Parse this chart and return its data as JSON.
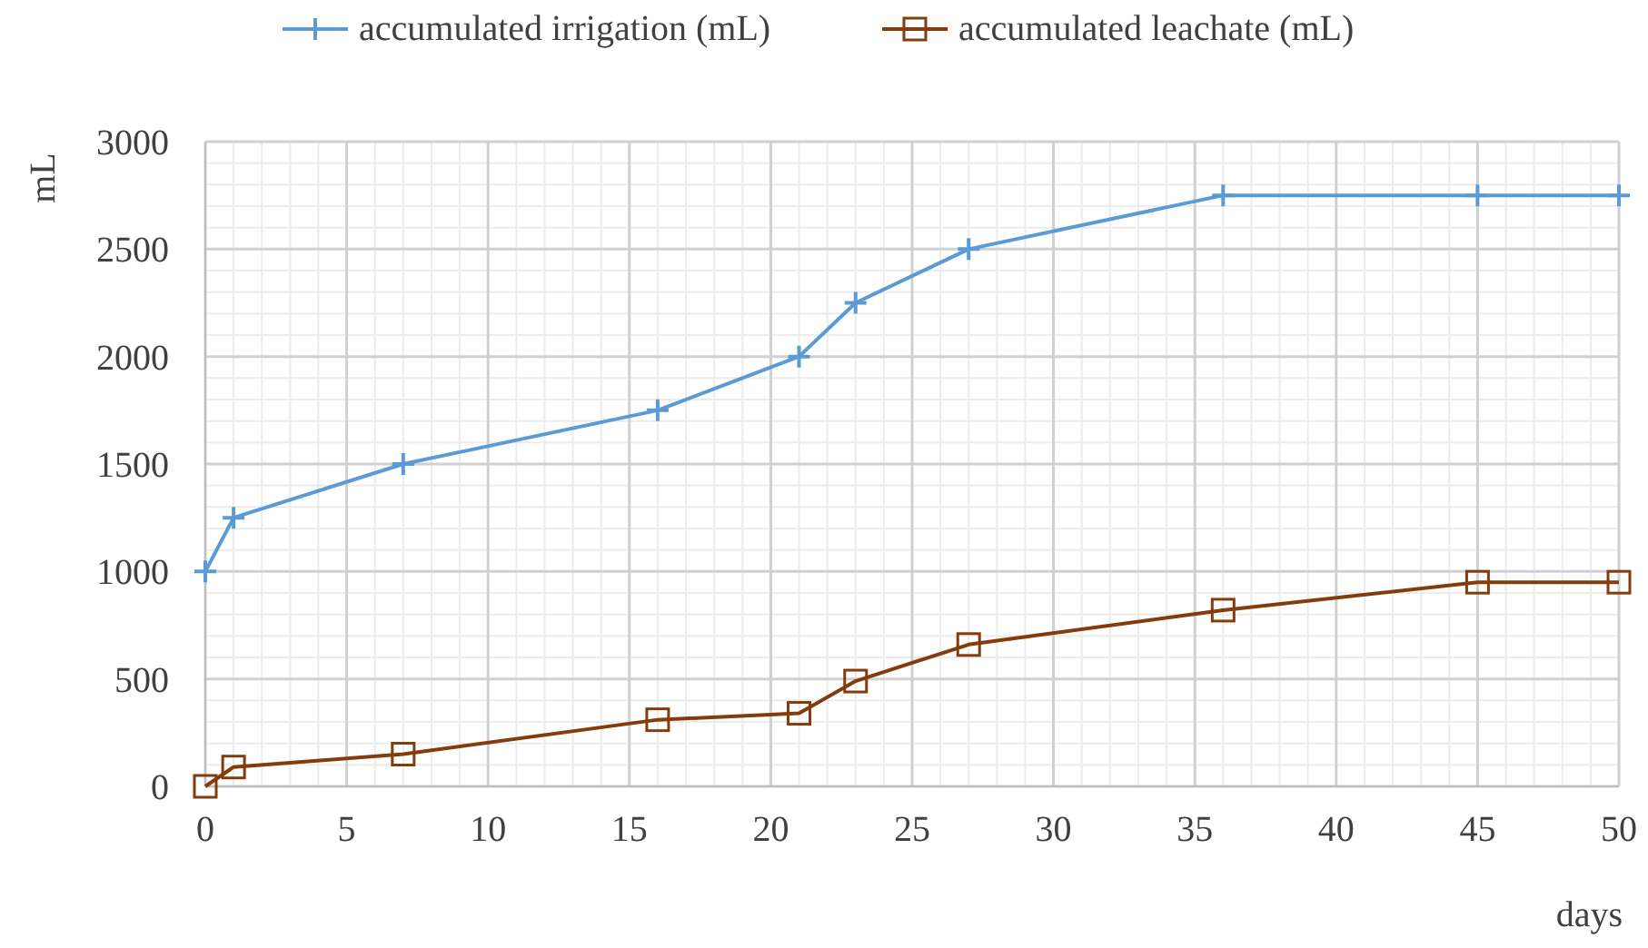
{
  "chart_data": {
    "type": "line",
    "xlabel": "days",
    "ylabel": "mL",
    "xlim": [
      0,
      50
    ],
    "ylim": [
      0,
      3000
    ],
    "xticks": [
      0,
      5,
      10,
      15,
      20,
      25,
      30,
      35,
      40,
      45,
      50
    ],
    "yticks": [
      0,
      500,
      1000,
      1500,
      2000,
      2500,
      3000
    ],
    "grid": true,
    "legend": "top",
    "x": [
      0,
      1,
      7,
      16,
      21,
      23,
      27,
      36,
      45,
      50
    ],
    "series": [
      {
        "name": "accumulated irrigation (mL)",
        "color": "#5b9bd5",
        "marker": "cross",
        "values": [
          1000,
          1250,
          1500,
          1750,
          2000,
          2250,
          2500,
          2750,
          2750,
          2750
        ]
      },
      {
        "name": "accumulated leachate (mL)",
        "color": "#843c0c",
        "marker": "square",
        "values": [
          0,
          90,
          150,
          310,
          340,
          490,
          660,
          820,
          950,
          950
        ]
      }
    ]
  }
}
